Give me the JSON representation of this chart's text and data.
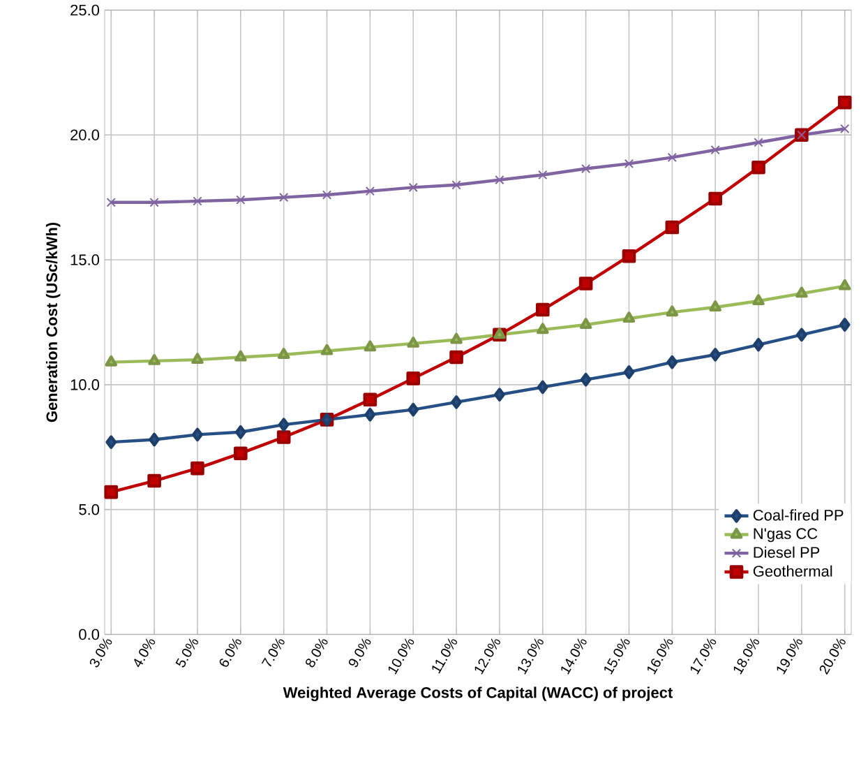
{
  "chart_data": {
    "type": "line",
    "xlabel": "Weighted Average Costs of Capital (WACC) of project",
    "ylabel": "Generation Cost (USc/kWh)",
    "categories": [
      "3.0%",
      "4.0%",
      "5.0%",
      "6.0%",
      "7.0%",
      "8.0%",
      "9.0%",
      "10.0%",
      "11.0%",
      "12.0%",
      "13.0%",
      "14.0%",
      "15.0%",
      "16.0%",
      "17.0%",
      "18.0%",
      "19.0%",
      "20.0%"
    ],
    "series": [
      {
        "name": "Coal-fired PP",
        "color": "#254f85",
        "marker": "diamond",
        "values": [
          7.7,
          7.8,
          8.0,
          8.1,
          8.4,
          8.6,
          8.8,
          9.0,
          9.3,
          9.6,
          9.9,
          10.2,
          10.5,
          10.9,
          11.2,
          11.6,
          12.0,
          12.4
        ]
      },
      {
        "name": "N'gas CC",
        "color": "#9bbb59",
        "marker": "triangle",
        "values": [
          10.9,
          10.95,
          11.0,
          11.1,
          11.2,
          11.35,
          11.5,
          11.65,
          11.8,
          12.0,
          12.2,
          12.4,
          12.65,
          12.9,
          13.1,
          13.35,
          13.65,
          13.95
        ]
      },
      {
        "name": "Diesel PP",
        "color": "#8064a2",
        "marker": "cross",
        "values": [
          17.3,
          17.3,
          17.35,
          17.4,
          17.5,
          17.6,
          17.75,
          17.9,
          18.0,
          18.2,
          18.4,
          18.65,
          18.85,
          19.1,
          19.4,
          19.7,
          20.0,
          20.25
        ]
      },
      {
        "name": "Geothermal",
        "color": "#c00000",
        "marker": "square",
        "values": [
          5.7,
          6.15,
          6.65,
          7.25,
          7.9,
          8.6,
          9.4,
          10.25,
          11.1,
          12.0,
          13.0,
          14.05,
          15.15,
          16.3,
          17.45,
          18.7,
          20.0,
          21.3
        ]
      }
    ],
    "ylim": [
      0,
      25
    ],
    "yticks": [
      {
        "value": 0,
        "label": "0.0"
      },
      {
        "value": 5,
        "label": "5.0"
      },
      {
        "value": 10,
        "label": "10.0"
      },
      {
        "value": 15,
        "label": "15.0"
      },
      {
        "value": 20,
        "label": "20.0"
      },
      {
        "value": 25,
        "label": "25.0"
      }
    ],
    "grid": true,
    "legend": "bottom right",
    "line_style": "solid"
  }
}
